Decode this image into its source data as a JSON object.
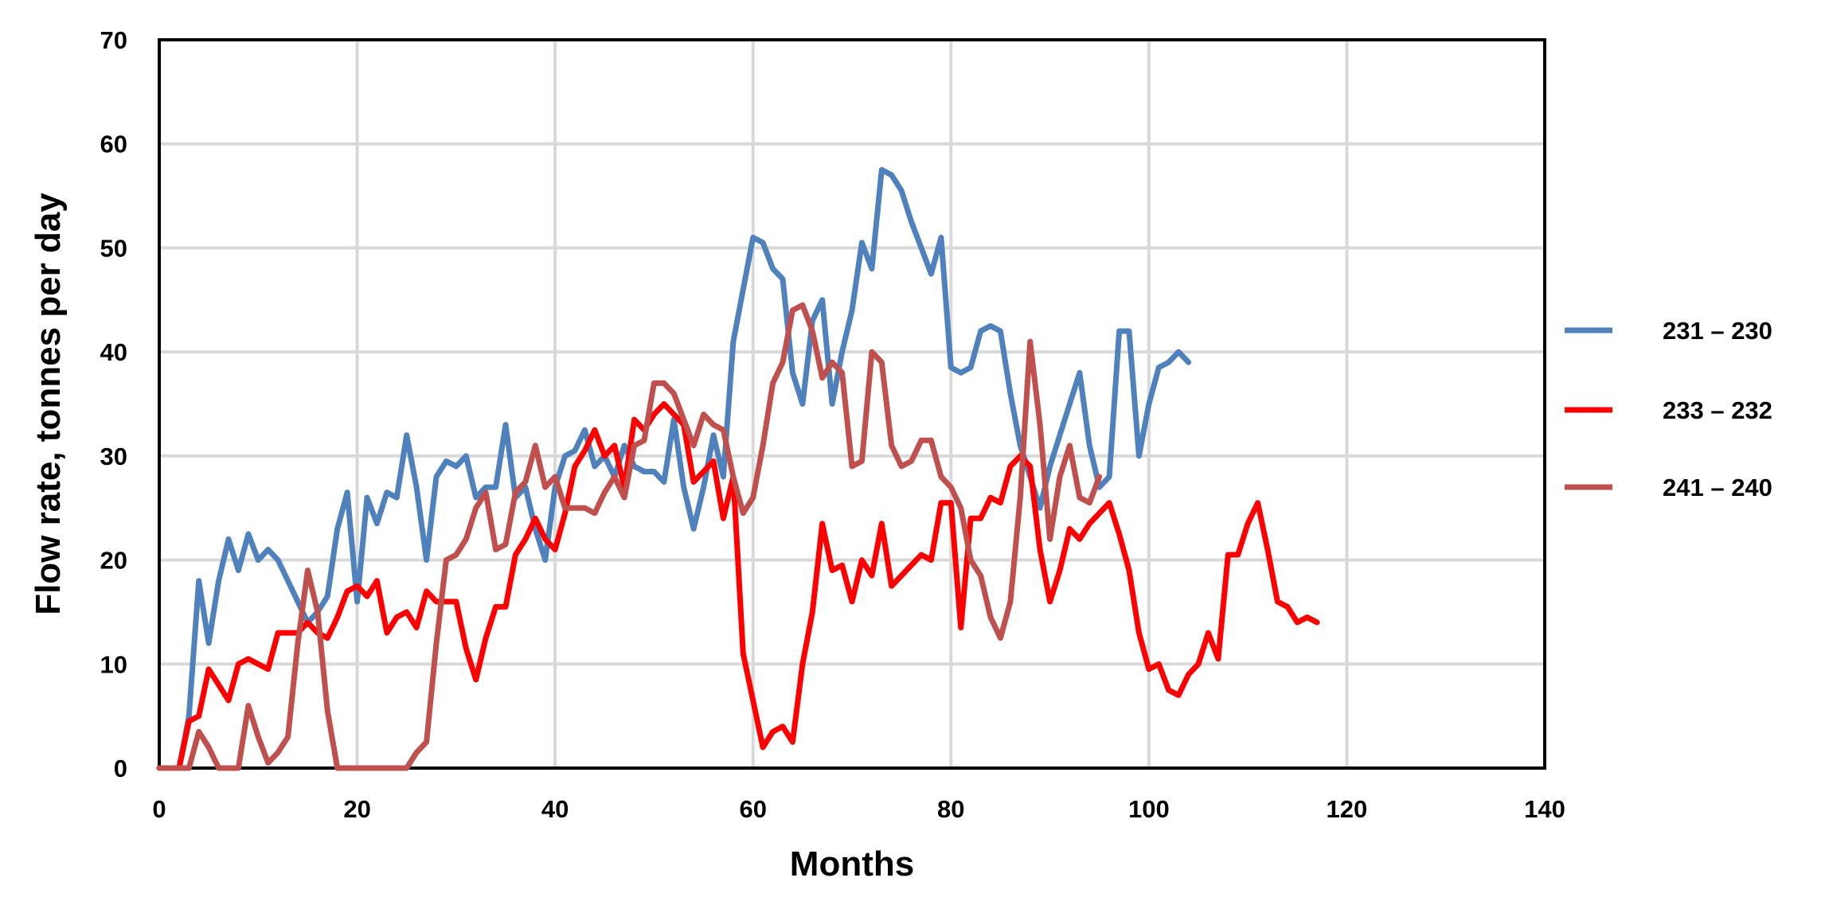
{
  "chart_data": {
    "type": "line",
    "title": "",
    "xlabel": "Months",
    "ylabel": "Flow rate, tonnes per day",
    "xlim": [
      0,
      140
    ],
    "ylim": [
      0,
      70
    ],
    "x_ticks": [
      0,
      20,
      40,
      60,
      80,
      100,
      120,
      140
    ],
    "y_ticks": [
      0,
      10,
      20,
      30,
      40,
      50,
      60,
      70
    ],
    "grid": true,
    "legend_position": "right",
    "series": [
      {
        "name": "231 – 230",
        "color": "#4f81bd",
        "x": [
          0,
          1,
          2,
          3,
          4,
          5,
          6,
          7,
          8,
          9,
          10,
          11,
          12,
          13,
          14,
          15,
          16,
          17,
          18,
          19,
          20,
          21,
          22,
          23,
          24,
          25,
          26,
          27,
          28,
          29,
          30,
          31,
          32,
          33,
          34,
          35,
          36,
          37,
          38,
          39,
          40,
          41,
          42,
          43,
          44,
          45,
          46,
          47,
          48,
          49,
          50,
          51,
          52,
          53,
          54,
          55,
          56,
          57,
          58,
          59,
          60,
          61,
          62,
          63,
          64,
          65,
          66,
          67,
          68,
          69,
          70,
          71,
          72,
          73,
          74,
          75,
          76,
          77,
          78,
          79,
          80,
          81,
          82,
          83,
          84,
          85,
          86,
          87,
          88,
          89,
          90,
          91,
          92,
          93,
          94,
          95,
          96,
          97,
          98,
          99,
          100,
          101,
          102,
          103,
          104
        ],
        "y": [
          0,
          0,
          0,
          5,
          18,
          12,
          18,
          22,
          19,
          22.5,
          20,
          21,
          20,
          18,
          16,
          14,
          15,
          16.5,
          23,
          26.5,
          16,
          26,
          23.5,
          26.5,
          26,
          32,
          27,
          20,
          28,
          29.5,
          29,
          30,
          26,
          27,
          27,
          33,
          26,
          27,
          23,
          20,
          27,
          30,
          30.5,
          32.5,
          29,
          30,
          28,
          31,
          29,
          28.5,
          28.5,
          27.5,
          33.5,
          27,
          23,
          27,
          32,
          28,
          41,
          46,
          51,
          50.5,
          48,
          47,
          38,
          35,
          43,
          45,
          35,
          40,
          44,
          50.5,
          48,
          57.5,
          57,
          55.5,
          52.5,
          50,
          47.5,
          51,
          38.5,
          38,
          38.5,
          42,
          42.5,
          42,
          36,
          31,
          28,
          25,
          29,
          32,
          35,
          38,
          31,
          27,
          28,
          42,
          42,
          30,
          35,
          38.5,
          39,
          40,
          39
        ]
      },
      {
        "name": "233 – 232",
        "color": "#ff0000",
        "x": [
          0,
          1,
          2,
          3,
          4,
          5,
          6,
          7,
          8,
          9,
          10,
          11,
          12,
          13,
          14,
          15,
          16,
          17,
          18,
          19,
          20,
          21,
          22,
          23,
          24,
          25,
          26,
          27,
          28,
          29,
          30,
          31,
          32,
          33,
          34,
          35,
          36,
          37,
          38,
          39,
          40,
          41,
          42,
          43,
          44,
          45,
          46,
          47,
          48,
          49,
          50,
          51,
          52,
          53,
          54,
          55,
          56,
          57,
          58,
          59,
          60,
          61,
          62,
          63,
          64,
          65,
          66,
          67,
          68,
          69,
          70,
          71,
          72,
          73,
          74,
          75,
          76,
          77,
          78,
          79,
          80,
          81,
          82,
          83,
          84,
          85,
          86,
          87,
          88,
          89,
          90,
          91,
          92,
          93,
          94,
          95,
          96,
          97,
          98,
          99,
          100,
          101,
          102,
          103,
          104,
          105,
          106,
          107,
          108,
          109,
          110,
          111,
          112,
          113,
          114,
          115,
          116,
          117
        ],
        "y": [
          0,
          0,
          0,
          4.5,
          5,
          9.5,
          8,
          6.5,
          10,
          10.5,
          10,
          9.5,
          13,
          13,
          13,
          14,
          13,
          12.5,
          14.5,
          17,
          17.5,
          16.5,
          18,
          13,
          14.5,
          15,
          13.5,
          17,
          16,
          16,
          16,
          11.5,
          8.5,
          12.5,
          15.5,
          15.5,
          20.5,
          22,
          24,
          22,
          21,
          24.5,
          29,
          30.5,
          32.5,
          30,
          31,
          27,
          33.5,
          32.5,
          34,
          35,
          34,
          33,
          27.5,
          28.5,
          29.5,
          24,
          28,
          11,
          6.5,
          2,
          3.5,
          4,
          2.5,
          10,
          15,
          23.5,
          19,
          19.5,
          16,
          20,
          18.5,
          23.5,
          17.5,
          18.5,
          19.5,
          20.5,
          20,
          25.5,
          25.5,
          13.5,
          24,
          24,
          26,
          25.5,
          29,
          30,
          29,
          21,
          16,
          19,
          23,
          22,
          23.5,
          24.5,
          25.5,
          22.5,
          19,
          13,
          9.5,
          10,
          7.5,
          7,
          9,
          10,
          13,
          10.5,
          20.5,
          20.5,
          23.5,
          25.5,
          21,
          16,
          15.5,
          14,
          14.5,
          14
        ]
      },
      {
        "name": "241 – 240",
        "color": "#c0504d",
        "x": [
          0,
          1,
          2,
          3,
          4,
          5,
          6,
          7,
          8,
          9,
          10,
          11,
          12,
          13,
          14,
          15,
          16,
          17,
          18,
          19,
          20,
          21,
          22,
          23,
          24,
          25,
          26,
          27,
          28,
          29,
          30,
          31,
          32,
          33,
          34,
          35,
          36,
          37,
          38,
          39,
          40,
          41,
          42,
          43,
          44,
          45,
          46,
          47,
          48,
          49,
          50,
          51,
          52,
          53,
          54,
          55,
          56,
          57,
          58,
          59,
          60,
          61,
          62,
          63,
          64,
          65,
          66,
          67,
          68,
          69,
          70,
          71,
          72,
          73,
          74,
          75,
          76,
          77,
          78,
          79,
          80,
          81,
          82,
          83,
          84,
          85,
          86,
          87,
          88,
          89,
          90,
          91,
          92,
          93,
          94,
          95
        ],
        "y": [
          0,
          0,
          0,
          0,
          3.5,
          2,
          0,
          0,
          0,
          6,
          3,
          0.5,
          1.5,
          3,
          12,
          19,
          15,
          5.5,
          0,
          0,
          0,
          0,
          0,
          0,
          0,
          0,
          1.5,
          2.5,
          12,
          20,
          20.5,
          22,
          25,
          26.5,
          21,
          21.5,
          26.5,
          27.5,
          31,
          27,
          28,
          25,
          25,
          25,
          24.5,
          26.5,
          28,
          26,
          31,
          31.5,
          37,
          37,
          36,
          33.5,
          31,
          34,
          33,
          32.5,
          28,
          24.5,
          26,
          31,
          37,
          39,
          44,
          44.5,
          42,
          37.5,
          39,
          38,
          29,
          29.5,
          40,
          39,
          31,
          29,
          29.5,
          31.5,
          31.5,
          28,
          27,
          25,
          20,
          18.5,
          14.5,
          12.5,
          16,
          26,
          41,
          33,
          22,
          28,
          31,
          26,
          25.5,
          28
        ]
      }
    ]
  }
}
